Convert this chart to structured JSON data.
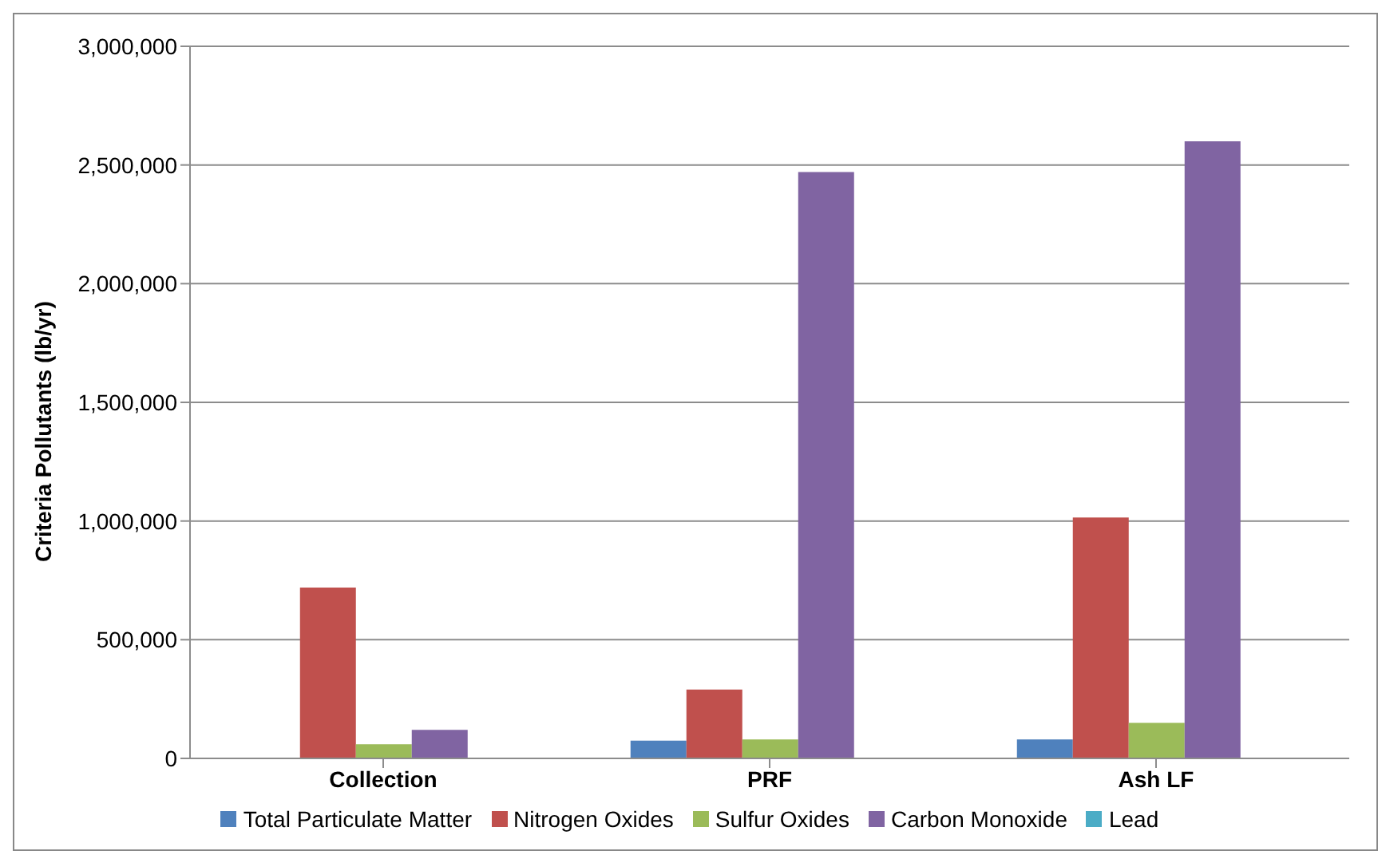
{
  "chart_data": {
    "type": "bar",
    "ylabel": "Criteria Pollutants (lb/yr)",
    "categories": [
      "Collection",
      "PRF",
      "Ash LF"
    ],
    "series": [
      {
        "name": "Total Particulate Matter",
        "color": "#4f81bd",
        "values": [
          0,
          75000,
          80000
        ]
      },
      {
        "name": "Nitrogen Oxides",
        "color": "#c0504d",
        "values": [
          720000,
          290000,
          1015000
        ]
      },
      {
        "name": "Sulfur Oxides",
        "color": "#9bbb59",
        "values": [
          60000,
          80000,
          150000
        ]
      },
      {
        "name": "Carbon Monoxide",
        "color": "#8064a2",
        "values": [
          120000,
          2470000,
          2600000
        ]
      },
      {
        "name": "Lead",
        "color": "#4bacc6",
        "values": [
          0,
          0,
          0
        ]
      }
    ],
    "ylim": [
      0,
      3000000
    ],
    "yticks": [
      0,
      {
        "value": 500000,
        "label": "500,000"
      },
      {
        "value": 1000000,
        "label": "1,000,000"
      },
      {
        "value": 1500000,
        "label": "1,500,000"
      },
      {
        "value": 2000000,
        "label": "2,000,000"
      },
      {
        "value": 2500000,
        "label": "2,500,000"
      },
      {
        "value": 3000000,
        "label": "3,000,000"
      }
    ],
    "grid": "y",
    "legend": "bottom"
  }
}
